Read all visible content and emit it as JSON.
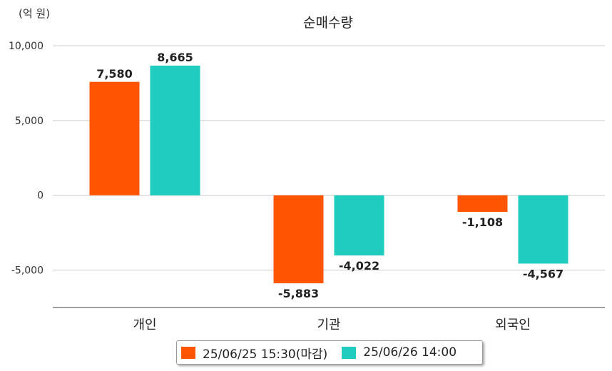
{
  "chart_data": {
    "type": "bar",
    "title": "순매수량",
    "unit_label": "(억 원)",
    "categories": [
      "개인",
      "기관",
      "외국인"
    ],
    "series": [
      {
        "name": "25/06/25 15:30(마감)",
        "color": "#ff5500",
        "values": [
          7580,
          -5883,
          -1108
        ],
        "labels": [
          "7,580",
          "-5,883",
          "-1,108"
        ]
      },
      {
        "name": "25/06/26 14:00",
        "color": "#1ecdbd",
        "values": [
          8665,
          -4022,
          -4567
        ],
        "labels": [
          "8,665",
          "-4,022",
          "-4,567"
        ]
      }
    ],
    "ylim": [
      -7500,
      10000
    ],
    "yticks": [
      10000,
      5000,
      0,
      -5000
    ],
    "ytick_labels": [
      "10,000",
      "5,000",
      "0",
      "-5,000"
    ],
    "grid": true,
    "legend_position": "bottom"
  }
}
